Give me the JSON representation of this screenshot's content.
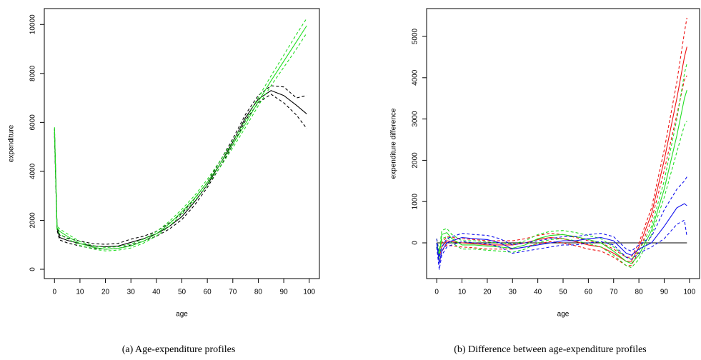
{
  "chart_data": [
    {
      "type": "line",
      "caption": "(a)  Age-expenditure profiles",
      "xlabel": "age",
      "ylabel": "expenditure",
      "xlim": [
        -4,
        104
      ],
      "ylim": [
        -380,
        10650
      ],
      "xticks": [
        0,
        10,
        20,
        30,
        40,
        50,
        60,
        70,
        80,
        90,
        100
      ],
      "yticks": [
        0,
        2000,
        4000,
        6000,
        8000,
        10000
      ],
      "x": [
        0,
        1,
        2,
        5,
        10,
        15,
        20,
        25,
        30,
        35,
        40,
        45,
        50,
        55,
        60,
        65,
        70,
        75,
        80,
        85,
        90,
        95,
        99
      ],
      "series": [
        {
          "color": "#000000",
          "dash": true,
          "values": [
            5750,
            1800,
            1400,
            1280,
            1150,
            1050,
            1020,
            1060,
            1230,
            1350,
            1550,
            1880,
            2280,
            2880,
            3560,
            4420,
            5330,
            6330,
            7100,
            7500,
            7450,
            7000,
            7100
          ]
        },
        {
          "color": "#000000",
          "dash": true,
          "values": [
            5450,
            1600,
            1200,
            1080,
            950,
            850,
            820,
            850,
            990,
            1150,
            1350,
            1640,
            2030,
            2620,
            3340,
            4180,
            5080,
            6080,
            6800,
            7150,
            6800,
            6300,
            5750
          ]
        },
        {
          "color": "#000000",
          "dash": false,
          "values": [
            5600,
            1700,
            1300,
            1180,
            1050,
            950,
            920,
            950,
            1100,
            1250,
            1450,
            1750,
            2150,
            2750,
            3450,
            4300,
            5200,
            6200,
            6950,
            7300,
            7100,
            6700,
            6350
          ]
        },
        {
          "color": "#22dd22",
          "dash": true,
          "values": [
            5800,
            1780,
            1650,
            1450,
            1130,
            970,
            890,
            920,
            1030,
            1230,
            1540,
            1950,
            2450,
            3010,
            3670,
            4430,
            5240,
            6100,
            7020,
            7900,
            8750,
            9600,
            10250
          ]
        },
        {
          "color": "#22dd22",
          "dash": true,
          "values": [
            5600,
            1620,
            1450,
            1250,
            970,
            830,
            750,
            780,
            870,
            1070,
            1360,
            1750,
            2250,
            2790,
            3430,
            4170,
            4960,
            5800,
            6680,
            7500,
            8250,
            9000,
            9650
          ]
        },
        {
          "color": "#22dd22",
          "dash": false,
          "values": [
            5700,
            1700,
            1550,
            1350,
            1050,
            900,
            820,
            850,
            950,
            1150,
            1450,
            1850,
            2350,
            2900,
            3550,
            4300,
            5100,
            5950,
            6850,
            7700,
            8500,
            9300,
            9950
          ]
        }
      ]
    },
    {
      "type": "line",
      "caption": "(b)  Difference between age-expenditure profiles",
      "xlabel": "age",
      "ylabel": "expenditure difference",
      "xlim": [
        -4,
        104
      ],
      "ylim": [
        -865,
        5675
      ],
      "xticks": [
        0,
        10,
        20,
        30,
        40,
        50,
        60,
        70,
        80,
        90,
        100
      ],
      "yticks": [
        0,
        1000,
        2000,
        3000,
        4000,
        5000
      ],
      "x": [
        0,
        1,
        2,
        4,
        6,
        10,
        15,
        20,
        25,
        30,
        35,
        40,
        45,
        50,
        55,
        60,
        65,
        70,
        75,
        77,
        80,
        85,
        90,
        95,
        98,
        99
      ],
      "series": [
        {
          "color": "#000000",
          "dash": false,
          "values": [
            0,
            0,
            0,
            0,
            0,
            0,
            0,
            0,
            0,
            0,
            0,
            0,
            0,
            0,
            0,
            0,
            0,
            0,
            0,
            0,
            0,
            0,
            0,
            0,
            0,
            0
          ]
        },
        {
          "color": "#ee1111",
          "dash": true,
          "values": [
            100,
            -200,
            0,
            150,
            130,
            100,
            80,
            50,
            50,
            50,
            100,
            180,
            230,
            200,
            130,
            50,
            0,
            -150,
            -350,
            -350,
            0,
            850,
            2250,
            3900,
            5100,
            5450
          ]
        },
        {
          "color": "#ee1111",
          "dash": true,
          "values": [
            -100,
            -500,
            -200,
            -50,
            -70,
            -100,
            -120,
            -150,
            -150,
            -150,
            -100,
            -20,
            30,
            0,
            -70,
            -150,
            -200,
            -350,
            -550,
            -550,
            -200,
            550,
            1750,
            3100,
            3950,
            4050
          ]
        },
        {
          "color": "#ee1111",
          "dash": false,
          "values": [
            0,
            -350,
            -100,
            50,
            30,
            0,
            -20,
            -50,
            -50,
            -50,
            0,
            80,
            130,
            100,
            30,
            -50,
            -100,
            -250,
            -450,
            -450,
            -100,
            700,
            2000,
            3500,
            4500,
            4750
          ]
        },
        {
          "color": "#22dd22",
          "dash": true,
          "values": [
            100,
            -200,
            300,
            350,
            200,
            50,
            50,
            20,
            0,
            -30,
            50,
            200,
            280,
            300,
            250,
            180,
            100,
            -100,
            -350,
            -400,
            -200,
            400,
            1500,
            3000,
            4100,
            4350
          ]
        },
        {
          "color": "#22dd22",
          "dash": true,
          "values": [
            -100,
            -400,
            100,
            150,
            0,
            -150,
            -150,
            -180,
            -200,
            -230,
            -150,
            0,
            80,
            100,
            50,
            -20,
            -100,
            -300,
            -550,
            -600,
            -400,
            200,
            1100,
            2200,
            2850,
            2950
          ]
        },
        {
          "color": "#22dd22",
          "dash": false,
          "values": [
            0,
            -300,
            200,
            250,
            100,
            -50,
            -50,
            -80,
            -100,
            -130,
            -50,
            100,
            180,
            200,
            150,
            80,
            0,
            -200,
            -450,
            -500,
            -300,
            300,
            1300,
            2600,
            3500,
            3700
          ]
        },
        {
          "color": "#1111ee",
          "dash": true,
          "values": [
            100,
            -350,
            -100,
            100,
            150,
            230,
            200,
            180,
            100,
            -50,
            0,
            50,
            100,
            150,
            150,
            200,
            230,
            150,
            -150,
            -200,
            -50,
            150,
            800,
            1300,
            1500,
            1600
          ]
        },
        {
          "color": "#1111ee",
          "dash": true,
          "values": [
            -100,
            -650,
            -300,
            -100,
            -50,
            30,
            0,
            -20,
            -100,
            -250,
            -200,
            -150,
            -100,
            -50,
            -50,
            0,
            30,
            -50,
            -350,
            -400,
            -250,
            -100,
            100,
            450,
            550,
            150
          ]
        },
        {
          "color": "#1111ee",
          "dash": false,
          "values": [
            0,
            -500,
            -200,
            0,
            50,
            130,
            100,
            80,
            0,
            -150,
            -100,
            -50,
            0,
            50,
            50,
            100,
            130,
            50,
            -250,
            -300,
            -150,
            0,
            400,
            850,
            950,
            900
          ]
        }
      ]
    }
  ]
}
